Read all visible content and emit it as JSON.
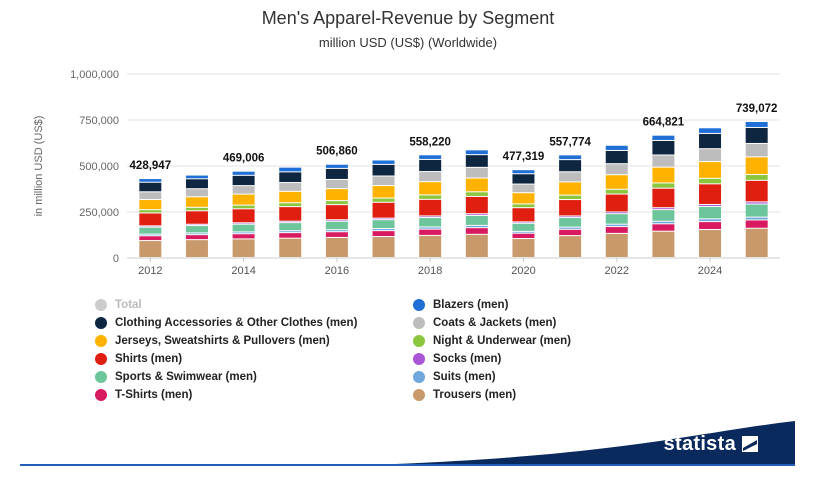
{
  "title": "Men's Apparel-Revenue by Segment",
  "subtitle": "million USD (US$) (Worldwide)",
  "brand": "statista",
  "chart_data": {
    "type": "stacked-bar",
    "ylabel": "in million USD (US$)",
    "ylim": [
      0,
      1000000
    ],
    "yticks": [
      0,
      250000,
      500000,
      750000,
      1000000
    ],
    "ytick_labels": [
      "0",
      "250,000",
      "500,000",
      "750,000",
      "1,000,000"
    ],
    "x": [
      2012,
      2013,
      2014,
      2015,
      2016,
      2017,
      2018,
      2019,
      2020,
      2021,
      2022,
      2023,
      2024,
      2025
    ],
    "x_tick_labels": [
      "2012",
      "2014",
      "2016",
      "2018",
      "2020",
      "2022",
      "2024"
    ],
    "totals": [
      428947,
      448000,
      469006,
      488000,
      506860,
      530000,
      558220,
      585000,
      477319,
      557774,
      610000,
      664821,
      705000,
      739072
    ],
    "total_labels": {
      "2012": "428,947",
      "2014": "469,006",
      "2016": "506,860",
      "2018": "558,220",
      "2020": "477,319",
      "2021": "557,774",
      "2023": "664,821",
      "2025": "739,072"
    },
    "series": [
      {
        "name": "Trousers (men)",
        "color": "#c8996b",
        "values": [
          92000,
          97000,
          101000,
          105000,
          109000,
          114000,
          120000,
          126000,
          103000,
          119000,
          131000,
          143000,
          152000,
          159000
        ]
      },
      {
        "name": "T-Shirts (men)",
        "color": "#d81b60",
        "values": [
          26000,
          27000,
          28000,
          30000,
          31000,
          32000,
          34000,
          36000,
          29000,
          34000,
          37000,
          40000,
          43000,
          45000
        ]
      },
      {
        "name": "Suits (men)",
        "color": "#6fa8dc",
        "values": [
          9000,
          9500,
          10000,
          10500,
          11000,
          11500,
          12000,
          12500,
          10000,
          12000,
          13000,
          14000,
          15000,
          15500
        ]
      },
      {
        "name": "Sports & Swimwear (men)",
        "color": "#6dc59b",
        "values": [
          38000,
          40000,
          42000,
          44000,
          46000,
          48000,
          51000,
          54000,
          44000,
          52000,
          57000,
          63000,
          67000,
          71000
        ]
      },
      {
        "name": "Socks (men)",
        "color": "#a855d6",
        "values": [
          7000,
          7300,
          7600,
          7900,
          8200,
          8500,
          9000,
          9400,
          7600,
          8900,
          9800,
          10600,
          11300,
          11800
        ]
      },
      {
        "name": "Shirts (men)",
        "color": "#e01f10",
        "values": [
          70000,
          73000,
          76000,
          79000,
          82000,
          86000,
          90000,
          94000,
          77000,
          89000,
          97000,
          106000,
          112000,
          117000
        ]
      },
      {
        "name": "Night & Underwear (men)",
        "color": "#8cc63f",
        "values": [
          18000,
          19000,
          20000,
          21000,
          22000,
          23000,
          24000,
          25000,
          20500,
          24000,
          26000,
          28500,
          30000,
          31500
        ]
      },
      {
        "name": "Jerseys, Sweatshirts & Pullovers (men)",
        "color": "#ffb300",
        "values": [
          55000,
          57000,
          60000,
          62000,
          65000,
          68000,
          72000,
          75000,
          61000,
          72000,
          79000,
          86000,
          91000,
          96000
        ]
      },
      {
        "name": "Coats & Jackets (men)",
        "color": "#bdbdbd",
        "values": [
          42000,
          44000,
          46000,
          48000,
          50000,
          52000,
          55000,
          58000,
          47000,
          55000,
          60000,
          66000,
          70000,
          73000
        ]
      },
      {
        "name": "Clothing Accessories & Other Clothes (men)",
        "color": "#0f2641",
        "values": [
          52000,
          54000,
          56000,
          58000,
          60000,
          63000,
          66000,
          69000,
          56000,
          66000,
          72000,
          79000,
          83000,
          87000
        ]
      },
      {
        "name": "Blazers (men)",
        "color": "#1f6fd6",
        "values": [
          19947,
          20200,
          22406,
          25600,
          22660,
          24000,
          25220,
          26100,
          22219,
          25874,
          28200,
          28721,
          30700,
          32272
        ]
      }
    ],
    "legend": {
      "left": [
        {
          "label": "Total",
          "color": "#cccccc",
          "muted": true
        },
        {
          "label": "Clothing Accessories & Other Clothes (men)",
          "color": "#0f2641"
        },
        {
          "label": "Jerseys, Sweatshirts & Pullovers (men)",
          "color": "#ffb300"
        },
        {
          "label": "Shirts (men)",
          "color": "#e01f10"
        },
        {
          "label": "Sports & Swimwear (men)",
          "color": "#6dc59b"
        },
        {
          "label": "T-Shirts (men)",
          "color": "#d81b60"
        }
      ],
      "right": [
        {
          "label": "Blazers (men)",
          "color": "#1f6fd6"
        },
        {
          "label": "Coats & Jackets (men)",
          "color": "#bdbdbd"
        },
        {
          "label": "Night & Underwear (men)",
          "color": "#8cc63f"
        },
        {
          "label": "Socks (men)",
          "color": "#a855d6"
        },
        {
          "label": "Suits (men)",
          "color": "#6fa8dc"
        },
        {
          "label": "Trousers (men)",
          "color": "#c8996b"
        }
      ]
    }
  }
}
